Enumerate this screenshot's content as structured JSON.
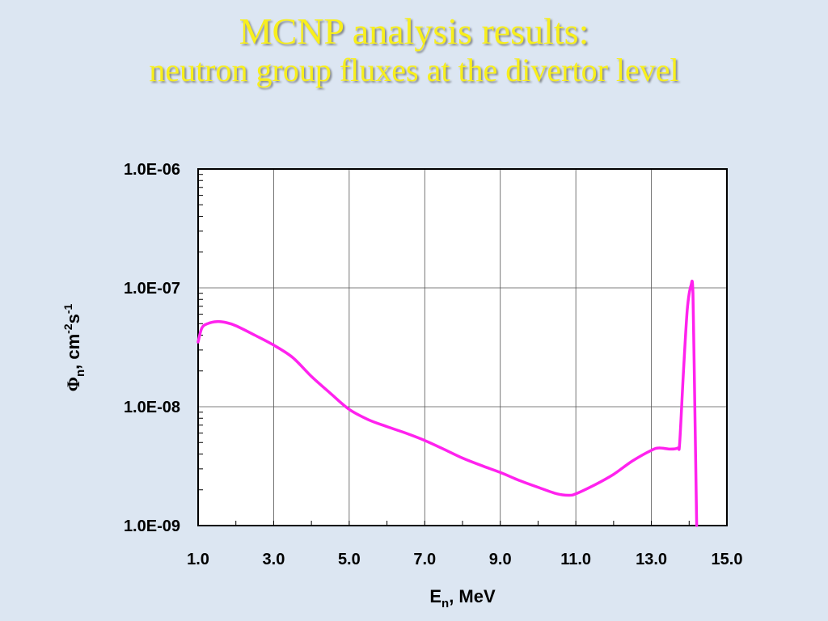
{
  "slide": {
    "title_line1": "MCNP analysis results:",
    "title_line2": "neutron group fluxes at the divertor level"
  },
  "colors": {
    "background": "#dce6f2",
    "title": "#f8ef1c",
    "plot_bg": "#ffffff",
    "series": "#ff22ee",
    "grid": "#555555"
  },
  "chart_data": {
    "type": "line",
    "title": "",
    "xlabel": "E",
    "xlabel_sub": "n",
    "xlabel_rest": ", MeV",
    "ylabel": "Φ",
    "ylabel_sub": "n",
    "ylabel_rest1": ", cm",
    "ylabel_sup1": "-2",
    "ylabel_rest2": "s",
    "ylabel_sup2": "-1",
    "xlim": [
      1.0,
      15.0
    ],
    "ylim": [
      1e-09,
      1e-06
    ],
    "yscale": "log",
    "grid": true,
    "x_ticks": [
      1.0,
      3.0,
      5.0,
      7.0,
      9.0,
      11.0,
      13.0,
      15.0
    ],
    "x_tick_labels": [
      "1.0",
      "3.0",
      "5.0",
      "7.0",
      "9.0",
      "11.0",
      "13.0",
      "15.0"
    ],
    "y_ticks": [
      1e-09,
      1e-08,
      1e-07,
      1e-06
    ],
    "y_tick_labels": [
      "1.0E-09",
      "1.0E-08",
      "1.0E-07",
      "1.0E-06"
    ],
    "series": [
      {
        "x": [
          1.0,
          1.1,
          1.25,
          1.5,
          1.75,
          2.0,
          2.5,
          3.0,
          3.5,
          4.0,
          4.5,
          5.0,
          5.5,
          6.0,
          6.5,
          7.0,
          7.5,
          8.0,
          8.5,
          9.0,
          9.5,
          10.0,
          10.5,
          10.8,
          11.0,
          11.5,
          12.0,
          12.5,
          13.0,
          13.2,
          13.5,
          13.7,
          13.75,
          13.85,
          13.95,
          14.05,
          14.1,
          14.15,
          14.2
        ],
        "y": [
          3.5e-08,
          4.6e-08,
          5e-08,
          5.2e-08,
          5.1e-08,
          4.8e-08,
          4e-08,
          3.3e-08,
          2.6e-08,
          1.8e-08,
          1.3e-08,
          9.5e-09,
          7.8e-09,
          6.8e-09,
          6e-09,
          5.2e-09,
          4.4e-09,
          3.7e-09,
          3.2e-09,
          2.8e-09,
          2.4e-09,
          2.1e-09,
          1.85e-09,
          1.8e-09,
          1.85e-09,
          2.2e-09,
          2.7e-09,
          3.5e-09,
          4.3e-09,
          4.5e-09,
          4.4e-09,
          4.5e-09,
          5e-09,
          2e-08,
          6.5e-08,
          1.05e-07,
          9e-08,
          1e-08,
          1e-09
        ]
      }
    ]
  }
}
